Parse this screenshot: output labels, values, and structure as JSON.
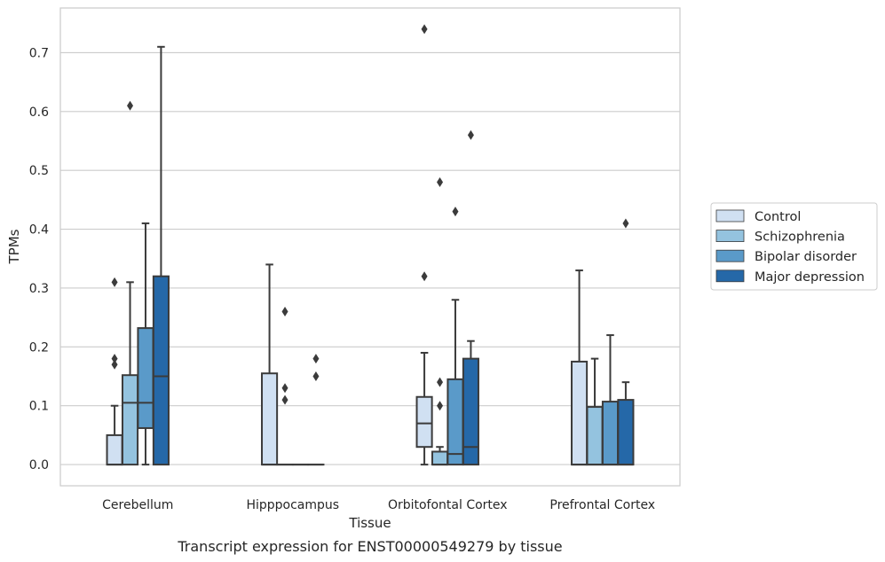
{
  "chart_data": {
    "type": "box",
    "caption": "Transcript expression for ENST00000549279 by tissue",
    "xlabel": "Tissue",
    "ylabel": "TPMs",
    "ylim": [
      -0.036,
      0.776
    ],
    "yticks": [
      0.0,
      0.1,
      0.2,
      0.3,
      0.4,
      0.5,
      0.6,
      0.7
    ],
    "ytick_labels": [
      "0.0",
      "0.1",
      "0.2",
      "0.3",
      "0.4",
      "0.5",
      "0.6",
      "0.7"
    ],
    "grid": "horizontal",
    "legend_position": "right",
    "categories": [
      "Cerebellum",
      "Hipppocampus",
      "Orbitofontal Cortex",
      "Prefrontal Cortex"
    ],
    "series": [
      {
        "name": "Control",
        "color": "#d0e0f2",
        "boxes": [
          {
            "whislo": 0.0,
            "q1": 0.0,
            "med": 0.0,
            "q3": 0.05,
            "whishi": 0.1,
            "fliers": [
              0.18,
              0.17,
              0.31
            ]
          },
          {
            "whislo": 0.0,
            "q1": 0.0,
            "med": 0.0,
            "q3": 0.155,
            "whishi": 0.34,
            "fliers": []
          },
          {
            "whislo": 0.0,
            "q1": 0.03,
            "med": 0.07,
            "q3": 0.115,
            "whishi": 0.19,
            "fliers": [
              0.32,
              0.74
            ]
          },
          {
            "whislo": 0.0,
            "q1": 0.0,
            "med": 0.0,
            "q3": 0.175,
            "whishi": 0.33,
            "fliers": []
          }
        ]
      },
      {
        "name": "Schizophrenia",
        "color": "#94c3df",
        "boxes": [
          {
            "whislo": 0.0,
            "q1": 0.0,
            "med": 0.105,
            "q3": 0.152,
            "whishi": 0.31,
            "fliers": [
              0.61
            ]
          },
          {
            "whislo": 0.0,
            "q1": 0.0,
            "med": 0.0,
            "q3": 0.0,
            "whishi": 0.0,
            "fliers": [
              0.11,
              0.13,
              0.26
            ]
          },
          {
            "whislo": 0.0,
            "q1": 0.0,
            "med": 0.0,
            "q3": 0.022,
            "whishi": 0.03,
            "fliers": [
              0.1,
              0.14,
              0.48
            ]
          },
          {
            "whislo": 0.0,
            "q1": 0.0,
            "med": 0.0,
            "q3": 0.098,
            "whishi": 0.18,
            "fliers": []
          }
        ]
      },
      {
        "name": "Bipolar disorder",
        "color": "#5a9ac9",
        "boxes": [
          {
            "whislo": 0.0,
            "q1": 0.062,
            "med": 0.105,
            "q3": 0.232,
            "whishi": 0.41,
            "fliers": []
          },
          {
            "whislo": 0.0,
            "q1": 0.0,
            "med": 0.0,
            "q3": 0.0,
            "whishi": 0.0,
            "fliers": []
          },
          {
            "whislo": 0.0,
            "q1": 0.0,
            "med": 0.018,
            "q3": 0.145,
            "whishi": 0.28,
            "fliers": [
              0.43
            ]
          },
          {
            "whislo": 0.0,
            "q1": 0.0,
            "med": 0.0,
            "q3": 0.107,
            "whishi": 0.22,
            "fliers": []
          }
        ]
      },
      {
        "name": "Major depression",
        "color": "#2568a8",
        "boxes": [
          {
            "whislo": 0.0,
            "q1": 0.0,
            "med": 0.15,
            "q3": 0.32,
            "whishi": 0.71,
            "fliers": []
          },
          {
            "whislo": 0.0,
            "q1": 0.0,
            "med": 0.0,
            "q3": 0.0,
            "whishi": 0.0,
            "fliers": [
              0.15,
              0.18
            ]
          },
          {
            "whislo": 0.0,
            "q1": 0.0,
            "med": 0.03,
            "q3": 0.18,
            "whishi": 0.21,
            "fliers": [
              0.56
            ]
          },
          {
            "whislo": 0.0,
            "q1": 0.0,
            "med": 0.0,
            "q3": 0.11,
            "whishi": 0.14,
            "fliers": [
              0.41
            ]
          }
        ]
      }
    ]
  }
}
